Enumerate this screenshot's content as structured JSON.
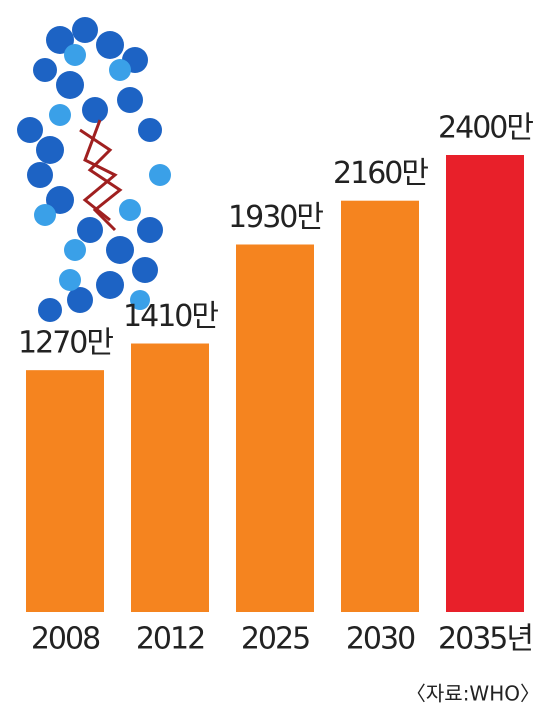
{
  "chart_data": {
    "type": "bar",
    "categories": [
      "2008",
      "2012",
      "2025",
      "2030",
      "2035년"
    ],
    "values": [
      1270,
      1410,
      1930,
      2160,
      2400
    ],
    "value_labels": [
      "1270만",
      "1410만",
      "1930만",
      "2160만",
      "2400만"
    ],
    "colors": [
      "#f5841f",
      "#f5841f",
      "#f5841f",
      "#f5841f",
      "#e8202a"
    ],
    "source": "〈자료:WHO〉"
  }
}
